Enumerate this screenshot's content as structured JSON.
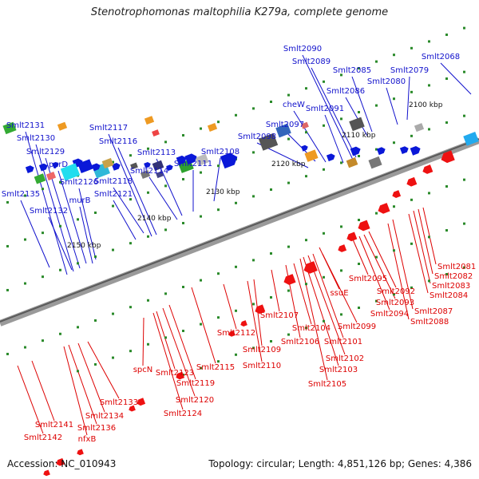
{
  "title": "Stenotrophomonas maltophilia K279a, complete genome",
  "footer": {
    "accession": "Accession: NC_010943",
    "topology": "Topology: circular; Length: 4,851,126 bp; Genes: 4,386"
  },
  "colors": {
    "forward_label": "#1111cc",
    "reverse_label": "#dd0000",
    "forward_gene": "#0a18d8",
    "reverse_gene": "#ee1111",
    "backbone": "#777777",
    "tick": "#2a8a2a"
  },
  "scale": {
    "labels": [
      "2100 kbp",
      "2110 kbp",
      "2120 kbp",
      "2130 kbp",
      "2140 kbp",
      "2150 kbp"
    ]
  },
  "forward_genes": [
    "Smlt2068",
    "Smlt2079",
    "Smlt2080",
    "Smlt2085",
    "Smlt2086",
    "Smlt2089",
    "Smlt2090",
    "Smlt2091",
    "cheW",
    "Smlt2097",
    "Smlt2098",
    "Smlt2108",
    "Smlt2111",
    "Smlt2113",
    "Smlt2114",
    "Smlt2116",
    "Smlt2117",
    "Smlt2118",
    "Smlt2121",
    "Smlt2126",
    "murB",
    "pyrD",
    "Smlt2129",
    "Smlt2130",
    "Smlt2131",
    "Smlt2132",
    "Smlt2135"
  ],
  "reverse_genes": [
    "Smlt2081",
    "Smlt2082",
    "Smlt2083",
    "Smlt2084",
    "Smlt2087",
    "Smlt2088",
    "Smlt2092",
    "Smlt2093",
    "Smlt2094",
    "Smlt2095",
    "ssuE",
    "Smlt2099",
    "Smlt2101",
    "Smlt2102",
    "Smlt2103",
    "Smlt2104",
    "Smlt2105",
    "Smlt2106",
    "Smlt2107",
    "Smlt2109",
    "Smlt2110",
    "Smlt2112",
    "Smlt2115",
    "Smlt2119",
    "Smlt2120",
    "Smlt2123",
    "Smlt2124",
    "spcN",
    "Smlt2133",
    "Smlt2134",
    "Smlt2136",
    "nfxB",
    "Smlt2141",
    "Smlt2142"
  ]
}
